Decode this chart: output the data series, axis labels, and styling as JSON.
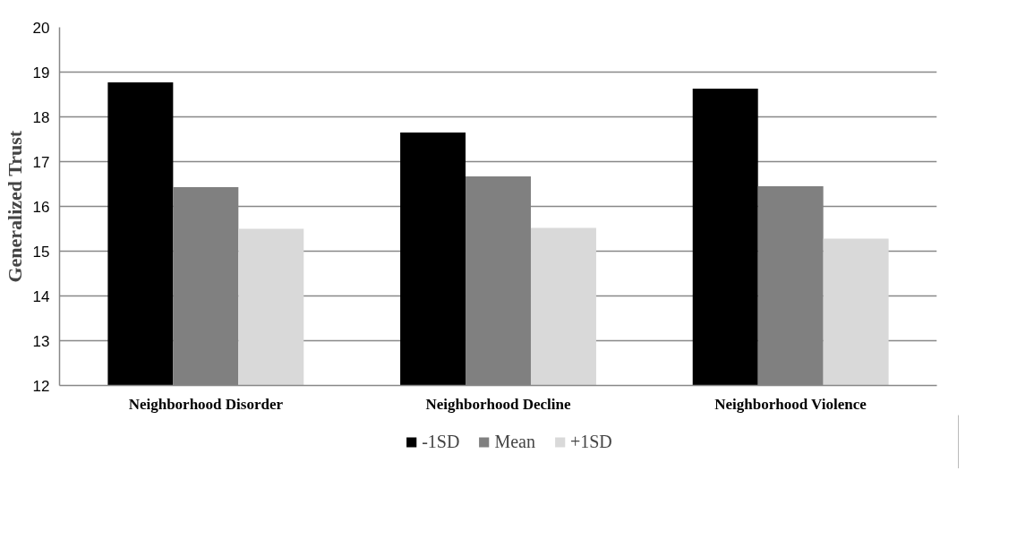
{
  "chart_data": {
    "type": "bar",
    "ylabel": "Generalized Trust",
    "categories": [
      "Neighborhood Disorder",
      "Neighborhood Decline",
      "Neighborhood Violence"
    ],
    "series": [
      {
        "name": "-1SD",
        "color": "#000000",
        "values": [
          18.77,
          17.65,
          18.63
        ]
      },
      {
        "name": "Mean",
        "color": "#808080",
        "values": [
          16.43,
          16.67,
          16.45
        ]
      },
      {
        "name": "+1SD",
        "color": "#d9d9d9",
        "values": [
          15.5,
          15.52,
          15.28
        ]
      }
    ],
    "ylim": [
      12,
      20
    ],
    "yticks": [
      12,
      13,
      14,
      15,
      16,
      17,
      18,
      19,
      20
    ],
    "grid": "y",
    "legend": "bottom"
  }
}
